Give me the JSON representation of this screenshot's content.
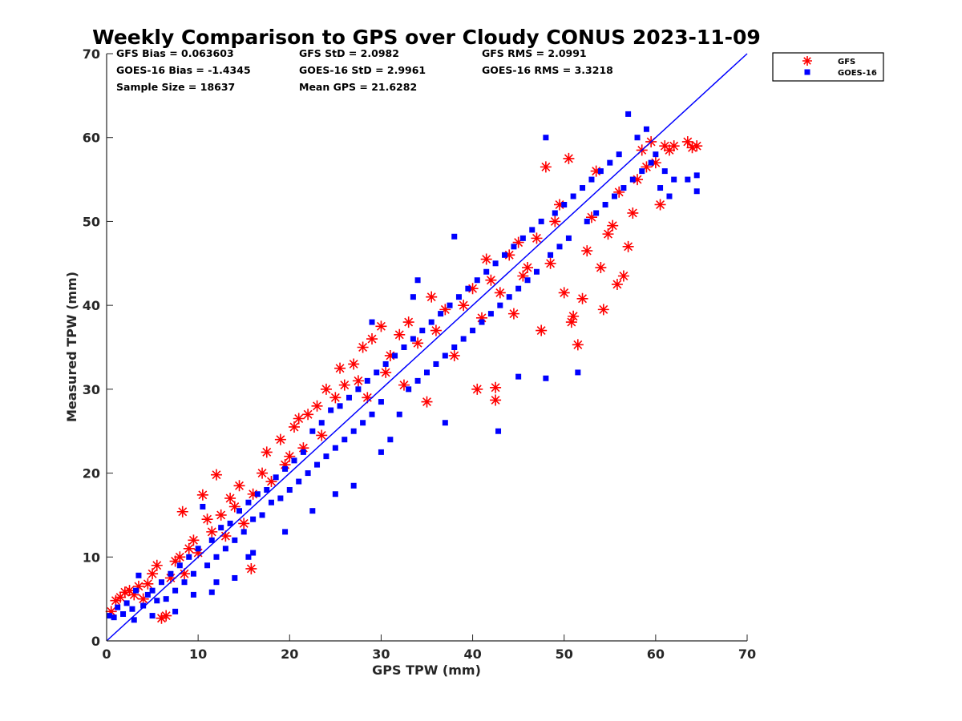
{
  "chart_data": {
    "type": "scatter",
    "title": "Weekly Comparison to GPS over Cloudy CONUS 2023-11-09",
    "xlabel": "GPS TPW (mm)",
    "ylabel": "Measured TPW (mm)",
    "xlim": [
      0,
      70
    ],
    "ylim": [
      0,
      70
    ],
    "xticks": [
      "0",
      "10",
      "20",
      "30",
      "40",
      "50",
      "60",
      "70"
    ],
    "yticks": [
      "0",
      "10",
      "20",
      "30",
      "40",
      "50",
      "60",
      "70"
    ],
    "grid": false,
    "legend_position": "outside-top-right",
    "reference_line": {
      "x": [
        0,
        70
      ],
      "y": [
        0,
        70
      ],
      "color": "#0000ff"
    },
    "stats": [
      [
        "GFS Bias = 0.063603",
        "GFS StD = 2.0982",
        "GFS RMS = 2.0991"
      ],
      [
        "GOES-16 Bias = -1.4345",
        "GOES-16 StD = 2.9961",
        "GOES-16 RMS = 3.3218"
      ],
      [
        "Sample Size = 18637",
        "Mean GPS = 21.6282"
      ]
    ],
    "series": [
      {
        "name": "GFS",
        "color": "#ff0000",
        "marker": "asterisk",
        "points": [
          [
            0.5,
            3.5
          ],
          [
            1.0,
            4.8
          ],
          [
            1.5,
            5.2
          ],
          [
            2.0,
            5.8
          ],
          [
            2.5,
            6.0
          ],
          [
            3.0,
            5.5
          ],
          [
            3.5,
            6.5
          ],
          [
            4.0,
            5.0
          ],
          [
            4.5,
            6.8
          ],
          [
            5.0,
            8.0
          ],
          [
            5.5,
            9.0
          ],
          [
            6.0,
            2.7
          ],
          [
            6.5,
            3.0
          ],
          [
            7.0,
            7.5
          ],
          [
            7.5,
            9.5
          ],
          [
            8.0,
            10.0
          ],
          [
            8.3,
            15.4
          ],
          [
            8.5,
            8.0
          ],
          [
            9.0,
            11.0
          ],
          [
            9.5,
            12.0
          ],
          [
            10.0,
            10.5
          ],
          [
            10.5,
            17.4
          ],
          [
            11.0,
            14.5
          ],
          [
            11.5,
            13.0
          ],
          [
            12.0,
            19.8
          ],
          [
            12.5,
            15.0
          ],
          [
            13.0,
            12.5
          ],
          [
            13.5,
            17.0
          ],
          [
            14.0,
            16.0
          ],
          [
            14.5,
            18.5
          ],
          [
            15.0,
            14.0
          ],
          [
            15.8,
            8.6
          ],
          [
            16.0,
            17.5
          ],
          [
            17.0,
            20.0
          ],
          [
            17.5,
            22.5
          ],
          [
            18.0,
            19.0
          ],
          [
            19.0,
            24.0
          ],
          [
            19.5,
            21.0
          ],
          [
            20.0,
            22.0
          ],
          [
            20.5,
            25.5
          ],
          [
            21.0,
            26.5
          ],
          [
            21.5,
            23.0
          ],
          [
            22.0,
            27.0
          ],
          [
            23.0,
            28.0
          ],
          [
            23.5,
            24.5
          ],
          [
            24.0,
            30.0
          ],
          [
            25.0,
            29.0
          ],
          [
            25.5,
            32.5
          ],
          [
            26.0,
            30.5
          ],
          [
            27.0,
            33.0
          ],
          [
            27.5,
            31.0
          ],
          [
            28.0,
            35.0
          ],
          [
            28.5,
            29.0
          ],
          [
            29.0,
            36.0
          ],
          [
            30.0,
            37.5
          ],
          [
            30.5,
            32.0
          ],
          [
            31.0,
            34.0
          ],
          [
            32.0,
            36.5
          ],
          [
            32.5,
            30.5
          ],
          [
            33.0,
            38.0
          ],
          [
            34.0,
            35.5
          ],
          [
            35.0,
            28.5
          ],
          [
            35.5,
            41.0
          ],
          [
            36.0,
            37.0
          ],
          [
            37.0,
            39.5
          ],
          [
            38.0,
            34.0
          ],
          [
            39.0,
            40.0
          ],
          [
            40.0,
            42.0
          ],
          [
            40.5,
            30.0
          ],
          [
            41.0,
            38.5
          ],
          [
            41.5,
            45.5
          ],
          [
            42.0,
            43.0
          ],
          [
            42.5,
            30.2
          ],
          [
            42.5,
            28.7
          ],
          [
            43.0,
            41.5
          ],
          [
            44.0,
            46.0
          ],
          [
            44.5,
            39.0
          ],
          [
            45.0,
            47.5
          ],
          [
            45.5,
            43.5
          ],
          [
            46.0,
            44.5
          ],
          [
            47.0,
            48.0
          ],
          [
            47.5,
            37.0
          ],
          [
            48.0,
            56.5
          ],
          [
            48.5,
            45.0
          ],
          [
            49.0,
            50.0
          ],
          [
            49.5,
            52.0
          ],
          [
            50.0,
            41.5
          ],
          [
            50.5,
            57.5
          ],
          [
            50.8,
            38.0
          ],
          [
            51.0,
            38.7
          ],
          [
            51.5,
            35.3
          ],
          [
            52.0,
            40.8
          ],
          [
            52.5,
            46.5
          ],
          [
            53.0,
            50.5
          ],
          [
            53.5,
            56.0
          ],
          [
            54.0,
            44.5
          ],
          [
            54.3,
            39.5
          ],
          [
            54.8,
            48.5
          ],
          [
            55.3,
            49.5
          ],
          [
            55.8,
            42.5
          ],
          [
            56.0,
            53.5
          ],
          [
            56.5,
            43.5
          ],
          [
            57.0,
            47.0
          ],
          [
            57.5,
            51.0
          ],
          [
            58.0,
            55.0
          ],
          [
            58.5,
            58.5
          ],
          [
            59.0,
            56.5
          ],
          [
            59.5,
            59.5
          ],
          [
            60.0,
            57.0
          ],
          [
            60.5,
            52.0
          ],
          [
            61.0,
            59.0
          ],
          [
            61.5,
            58.5
          ],
          [
            62.0,
            59.0
          ],
          [
            63.5,
            59.5
          ],
          [
            64.0,
            58.8
          ],
          [
            64.5,
            59.0
          ]
        ]
      },
      {
        "name": "GOES-16",
        "color": "#0000ff",
        "marker": "square",
        "points": [
          [
            0.3,
            3.0
          ],
          [
            0.8,
            2.8
          ],
          [
            1.2,
            4.0
          ],
          [
            1.8,
            3.2
          ],
          [
            2.2,
            4.5
          ],
          [
            2.8,
            3.8
          ],
          [
            3.2,
            6.0
          ],
          [
            3.5,
            7.8
          ],
          [
            4.0,
            4.2
          ],
          [
            4.5,
            5.5
          ],
          [
            5.0,
            6.0
          ],
          [
            5.5,
            4.8
          ],
          [
            6.0,
            7.0
          ],
          [
            6.5,
            5.0
          ],
          [
            7.0,
            8.0
          ],
          [
            7.5,
            6.0
          ],
          [
            8.0,
            9.0
          ],
          [
            8.5,
            7.0
          ],
          [
            9.0,
            10.0
          ],
          [
            9.5,
            8.0
          ],
          [
            10.0,
            11.0
          ],
          [
            10.5,
            16.0
          ],
          [
            11.0,
            9.0
          ],
          [
            11.5,
            12.0
          ],
          [
            12.0,
            10.0
          ],
          [
            12.5,
            13.5
          ],
          [
            13.0,
            11.0
          ],
          [
            13.5,
            14.0
          ],
          [
            14.0,
            12.0
          ],
          [
            14.5,
            15.5
          ],
          [
            15.0,
            13.0
          ],
          [
            15.5,
            16.5
          ],
          [
            16.0,
            14.5
          ],
          [
            16.5,
            17.5
          ],
          [
            17.0,
            15.0
          ],
          [
            17.5,
            18.0
          ],
          [
            18.0,
            16.5
          ],
          [
            18.5,
            19.5
          ],
          [
            19.0,
            17.0
          ],
          [
            19.5,
            20.5
          ],
          [
            20.0,
            18.0
          ],
          [
            20.5,
            21.5
          ],
          [
            21.0,
            19.0
          ],
          [
            21.5,
            22.5
          ],
          [
            22.0,
            20.0
          ],
          [
            22.5,
            25.0
          ],
          [
            23.0,
            21.0
          ],
          [
            23.5,
            26.0
          ],
          [
            24.0,
            22.0
          ],
          [
            24.5,
            27.5
          ],
          [
            25.0,
            23.0
          ],
          [
            25.5,
            28.0
          ],
          [
            26.0,
            24.0
          ],
          [
            26.5,
            29.0
          ],
          [
            27.0,
            25.0
          ],
          [
            27.5,
            30.0
          ],
          [
            28.0,
            26.0
          ],
          [
            28.5,
            31.0
          ],
          [
            29.0,
            27.0
          ],
          [
            29.5,
            32.0
          ],
          [
            30.0,
            28.5
          ],
          [
            30.5,
            33.0
          ],
          [
            31.0,
            24.0
          ],
          [
            31.5,
            34.0
          ],
          [
            32.0,
            27.0
          ],
          [
            32.5,
            35.0
          ],
          [
            33.0,
            30.0
          ],
          [
            33.5,
            36.0
          ],
          [
            34.0,
            31.0
          ],
          [
            34.5,
            37.0
          ],
          [
            35.0,
            32.0
          ],
          [
            35.5,
            38.0
          ],
          [
            36.0,
            33.0
          ],
          [
            36.5,
            39.0
          ],
          [
            37.0,
            34.0
          ],
          [
            37.5,
            40.0
          ],
          [
            38.0,
            35.0
          ],
          [
            38.5,
            41.0
          ],
          [
            39.0,
            36.0
          ],
          [
            39.5,
            42.0
          ],
          [
            40.0,
            37.0
          ],
          [
            40.5,
            43.0
          ],
          [
            41.0,
            38.0
          ],
          [
            41.5,
            44.0
          ],
          [
            42.0,
            39.0
          ],
          [
            42.5,
            45.0
          ],
          [
            43.0,
            40.0
          ],
          [
            43.5,
            46.0
          ],
          [
            44.0,
            41.0
          ],
          [
            44.5,
            47.0
          ],
          [
            45.0,
            42.0
          ],
          [
            45.5,
            48.0
          ],
          [
            46.0,
            43.0
          ],
          [
            46.5,
            49.0
          ],
          [
            47.0,
            44.0
          ],
          [
            47.5,
            50.0
          ],
          [
            48.0,
            60.0
          ],
          [
            48.5,
            46.0
          ],
          [
            49.0,
            51.0
          ],
          [
            49.5,
            47.0
          ],
          [
            50.0,
            52.0
          ],
          [
            50.5,
            48.0
          ],
          [
            51.0,
            53.0
          ],
          [
            51.5,
            32.0
          ],
          [
            52.0,
            54.0
          ],
          [
            52.5,
            50.0
          ],
          [
            53.0,
            55.0
          ],
          [
            53.5,
            51.0
          ],
          [
            54.0,
            56.0
          ],
          [
            54.5,
            52.0
          ],
          [
            55.0,
            57.0
          ],
          [
            55.5,
            53.0
          ],
          [
            56.0,
            58.0
          ],
          [
            56.5,
            54.0
          ],
          [
            57.0,
            62.8
          ],
          [
            57.5,
            55.0
          ],
          [
            58.0,
            60.0
          ],
          [
            58.5,
            56.0
          ],
          [
            59.0,
            61.0
          ],
          [
            59.5,
            57.0
          ],
          [
            60.0,
            58.0
          ],
          [
            60.5,
            54.0
          ],
          [
            61.0,
            56.0
          ],
          [
            61.5,
            53.0
          ],
          [
            62.0,
            55.0
          ],
          [
            63.5,
            55.0
          ],
          [
            64.5,
            53.6
          ],
          [
            64.5,
            55.5
          ],
          [
            42.8,
            25.0
          ],
          [
            37.0,
            26.0
          ],
          [
            45.0,
            31.5
          ],
          [
            48.0,
            31.3
          ],
          [
            33.5,
            41.0
          ],
          [
            38.0,
            48.2
          ],
          [
            34.0,
            43.0
          ],
          [
            29.0,
            38.0
          ],
          [
            25.0,
            17.5
          ],
          [
            22.5,
            15.5
          ],
          [
            19.5,
            13.0
          ],
          [
            15.5,
            10.0
          ],
          [
            12.0,
            7.0
          ],
          [
            9.5,
            5.5
          ],
          [
            7.5,
            3.5
          ],
          [
            5.0,
            3.0
          ],
          [
            3.0,
            2.5
          ],
          [
            11.5,
            5.8
          ],
          [
            14.0,
            7.5
          ],
          [
            16.0,
            10.5
          ],
          [
            27.0,
            18.5
          ],
          [
            30.0,
            22.5
          ]
        ]
      }
    ]
  }
}
